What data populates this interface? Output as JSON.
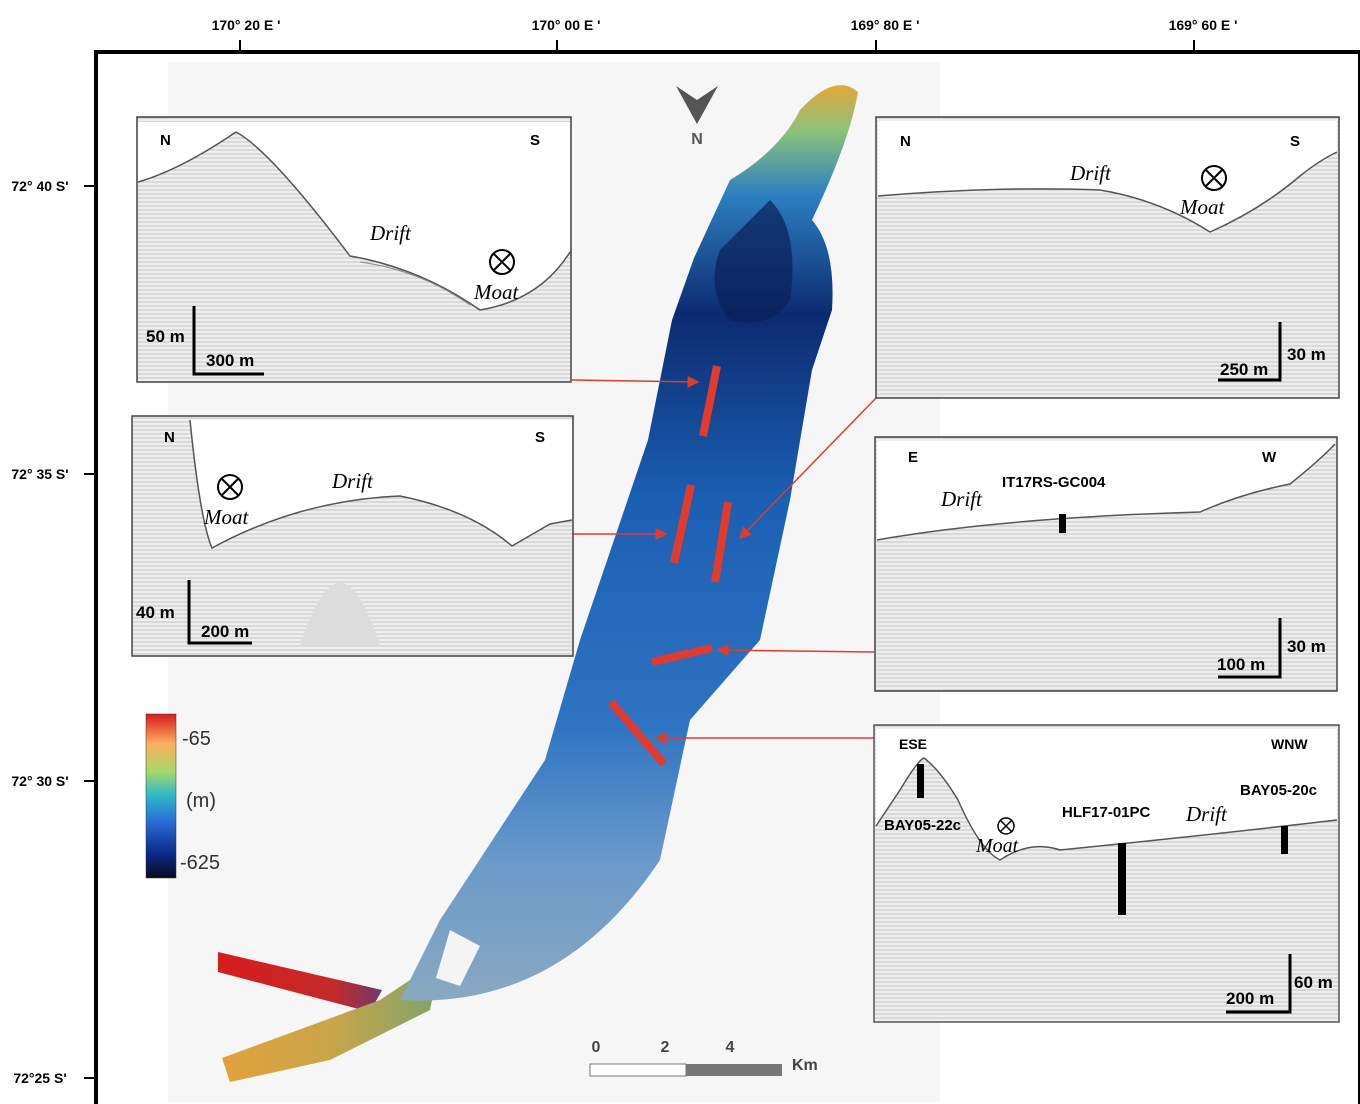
{
  "axes": {
    "top_labels": [
      "170° 20 E '",
      "170° 00 E '",
      "169° 80 E '",
      "169° 60 E '"
    ],
    "left_labels": [
      "72° 40 S'",
      "72° 35 S'",
      "72° 30 S'",
      "72°25 S'"
    ]
  },
  "north_arrow": {
    "label": "N"
  },
  "legend": {
    "max": "-65",
    "unit": "(m)",
    "min": "-625",
    "colors": [
      "#d7191c",
      "#fdae61",
      "#a6d96a",
      "#2bb7c9",
      "#2b6fd6",
      "#0b2a8a",
      "#0a0a1e"
    ]
  },
  "scale_bar": {
    "ticks": [
      "0",
      "2",
      "4"
    ],
    "unit": "Km"
  },
  "panels": {
    "p1": {
      "left": "N",
      "right": "S",
      "drift": "Drift",
      "moat": "Moat",
      "vscale": "50 m",
      "hscale": "300 m"
    },
    "p2": {
      "left": "N",
      "right": "S",
      "drift": "Drift",
      "moat": "Moat",
      "vscale": "40 m",
      "hscale": "200 m"
    },
    "p3": {
      "left": "N",
      "right": "S",
      "drift": "Drift",
      "moat": "Moat",
      "vscale": "30 m",
      "hscale": "250 m"
    },
    "p4": {
      "left": "E",
      "right": "W",
      "drift": "Drift",
      "core": "IT17RS-GC004",
      "vscale": "30 m",
      "hscale": "100 m"
    },
    "p5": {
      "left": "ESE",
      "right": "WNW",
      "drift": "Drift",
      "moat": "Moat",
      "core1": "BAY05-22c",
      "core2": "HLF17-01PC",
      "core3": "BAY05-20c",
      "vscale": "60 m",
      "hscale": "200 m"
    }
  }
}
